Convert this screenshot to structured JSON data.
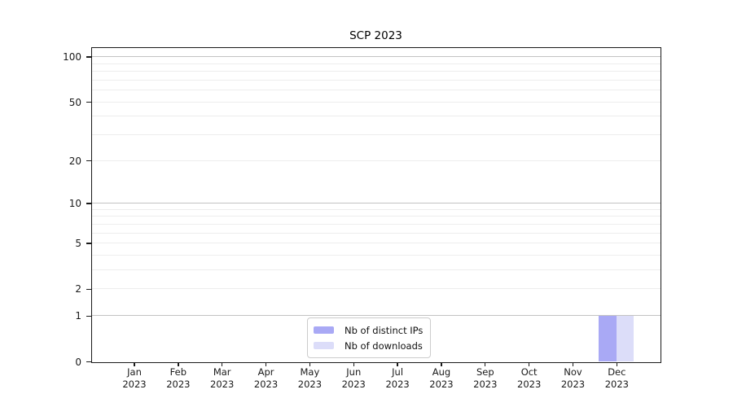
{
  "chart_data": {
    "type": "bar",
    "title": "SCP 2023",
    "x": {
      "categories": [
        "Jan",
        "Feb",
        "Mar",
        "Apr",
        "May",
        "Jun",
        "Jul",
        "Aug",
        "Sep",
        "Oct",
        "Nov",
        "Dec"
      ],
      "year": "2023"
    },
    "series": [
      {
        "name": "Nb of distinct IPs",
        "color": "#a9a9f5",
        "values": [
          0,
          0,
          0,
          0,
          0,
          0,
          0,
          0,
          0,
          0,
          0,
          1
        ]
      },
      {
        "name": "Nb of downloads",
        "color": "#dcddf9",
        "values": [
          0,
          0,
          0,
          0,
          0,
          0,
          0,
          0,
          0,
          0,
          0,
          1
        ]
      }
    ],
    "y_axis": {
      "scale": "log10(1+v)",
      "ticks": [
        0,
        1,
        2,
        5,
        10,
        20,
        50,
        100
      ],
      "decade_gridlines": [
        1,
        10,
        100
      ],
      "minor_gridlines": [
        3,
        4,
        6,
        7,
        8,
        9,
        30,
        40,
        60,
        70,
        80,
        90
      ],
      "range": [
        0,
        114
      ]
    },
    "grid": true,
    "legend_position": "lower center"
  }
}
